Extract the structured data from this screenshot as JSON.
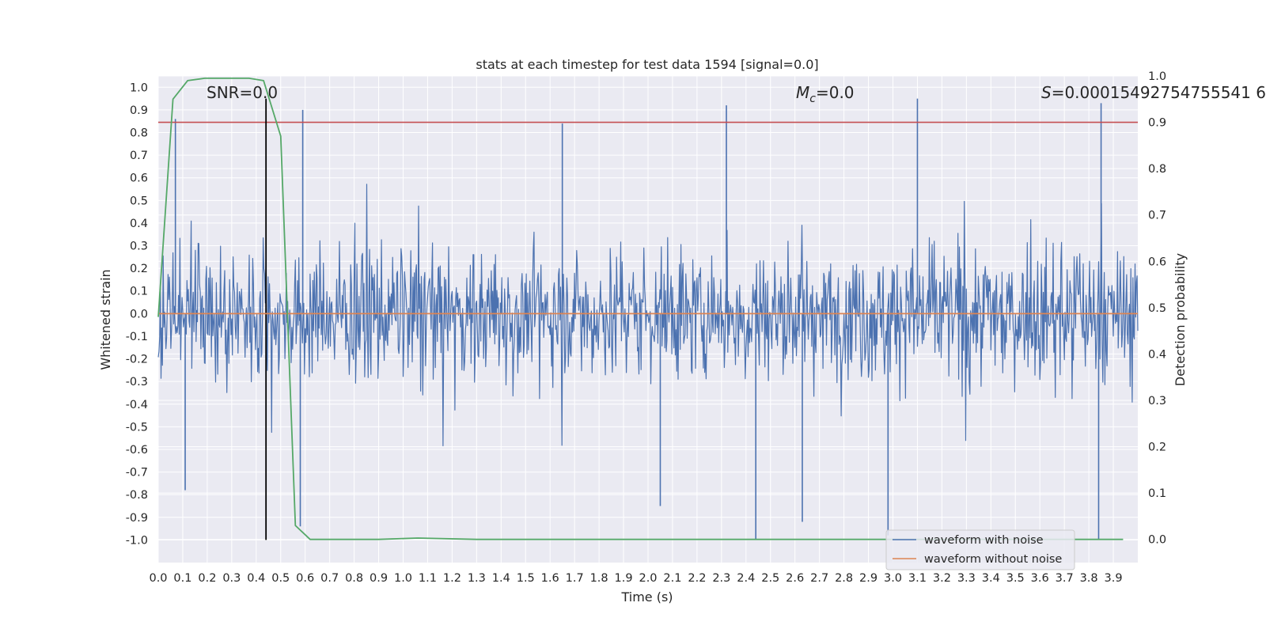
{
  "chart_data": {
    "type": "line",
    "title": "stats at each timestep for test data 1594 [signal=0.0]",
    "xlabel": "Time (s)",
    "ylabel": "Whitened strain",
    "y2label": "Detection probability",
    "xlim": [
      0.0,
      4.0
    ],
    "ylim": [
      -1.1,
      1.05
    ],
    "y2lim": [
      -0.05,
      1.0
    ],
    "x_ticks": [
      "0.0",
      "0.1",
      "0.2",
      "0.3",
      "0.4",
      "0.5",
      "0.6",
      "0.7",
      "0.8",
      "0.9",
      "1.0",
      "1.1",
      "1.2",
      "1.3",
      "1.4",
      "1.5",
      "1.6",
      "1.7",
      "1.8",
      "1.9",
      "2.0",
      "2.1",
      "2.2",
      "2.3",
      "2.4",
      "2.5",
      "2.6",
      "2.7",
      "2.8",
      "2.9",
      "3.0",
      "3.1",
      "3.2",
      "3.3",
      "3.4",
      "3.5",
      "3.6",
      "3.7",
      "3.8",
      "3.9"
    ],
    "y_ticks": [
      "1.0",
      "0.9",
      "0.8",
      "0.7",
      "0.6",
      "0.5",
      "0.4",
      "0.3",
      "0.2",
      "0.1",
      "0.0",
      "-0.1",
      "-0.2",
      "-0.3",
      "-0.4",
      "-0.5",
      "-0.6",
      "-0.7",
      "-0.8",
      "-0.9",
      "-1.0"
    ],
    "y2_ticks": [
      "1.0",
      "0.9",
      "0.8",
      "0.7",
      "0.6",
      "0.5",
      "0.4",
      "0.3",
      "0.2",
      "0.1",
      "0.0"
    ],
    "grid": true,
    "legend_position": "bottom-right",
    "annotations": {
      "snr": "SNR=0.0",
      "mc_symbol": "M",
      "mc_sub": "c",
      "mc_value": "=0.0",
      "s_symbol": "S",
      "s_value": "=0.00015492754755541 6"
    },
    "series": [
      {
        "name": "waveform with noise",
        "color": "#4c72b0",
        "axis": "left",
        "style": "dense noise, roughly |strain| within 0.5 with spikes to about ±0.95",
        "spike_peaks": [
          {
            "x": 0.07,
            "y": 0.86
          },
          {
            "x": 0.59,
            "y": 0.9
          },
          {
            "x": 1.65,
            "y": 0.84
          },
          {
            "x": 2.32,
            "y": 0.92
          },
          {
            "x": 3.1,
            "y": 0.95
          },
          {
            "x": 3.85,
            "y": 0.93
          }
        ],
        "spike_troughs": [
          {
            "x": 0.11,
            "y": -0.78
          },
          {
            "x": 0.58,
            "y": -0.94
          },
          {
            "x": 2.05,
            "y": -0.85
          },
          {
            "x": 2.44,
            "y": -1.0
          },
          {
            "x": 2.63,
            "y": -0.92
          },
          {
            "x": 2.98,
            "y": -0.98
          },
          {
            "x": 3.84,
            "y": -1.0
          }
        ]
      },
      {
        "name": "waveform without noise",
        "color": "#dd8452",
        "axis": "left",
        "x": [
          0.0,
          4.0
        ],
        "y": [
          0.0,
          0.0
        ]
      },
      {
        "color": "#55a868",
        "axis": "right",
        "x": [
          0.0,
          0.06,
          0.12,
          0.19,
          0.25,
          0.31,
          0.37,
          0.43,
          0.5,
          0.56,
          0.62,
          0.7,
          0.9,
          1.06,
          1.3,
          2.0,
          3.0,
          3.94
        ],
        "y": [
          0.48,
          0.95,
          0.99,
          0.995,
          0.995,
          0.995,
          0.995,
          0.99,
          0.87,
          0.03,
          0.0,
          0.0,
          0.0,
          0.003,
          0.0,
          0.0,
          0.0,
          0.0
        ]
      }
    ],
    "reference_lines": [
      {
        "orientation": "horizontal",
        "axis": "right",
        "value": 0.9,
        "color": "#c44e52"
      },
      {
        "orientation": "vertical",
        "x": 0.44,
        "y_from": -1.0,
        "y_to": 0.95,
        "color": "#000000"
      }
    ]
  }
}
